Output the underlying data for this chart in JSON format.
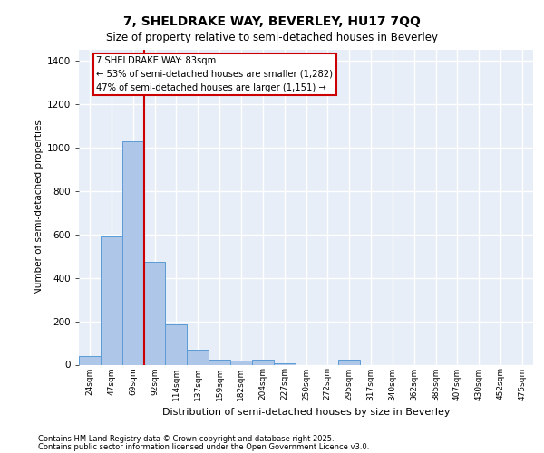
{
  "title1": "7, SHELDRAKE WAY, BEVERLEY, HU17 7QQ",
  "title2": "Size of property relative to semi-detached houses in Beverley",
  "xlabel": "Distribution of semi-detached houses by size in Beverley",
  "ylabel": "Number of semi-detached properties",
  "categories": [
    "24sqm",
    "47sqm",
    "69sqm",
    "92sqm",
    "114sqm",
    "137sqm",
    "159sqm",
    "182sqm",
    "204sqm",
    "227sqm",
    "250sqm",
    "272sqm",
    "295sqm",
    "317sqm",
    "340sqm",
    "362sqm",
    "385sqm",
    "407sqm",
    "430sqm",
    "452sqm",
    "475sqm"
  ],
  "values": [
    40,
    590,
    1030,
    475,
    185,
    70,
    25,
    18,
    25,
    8,
    0,
    0,
    22,
    0,
    0,
    0,
    0,
    0,
    0,
    0,
    0
  ],
  "bar_color": "#aec6e8",
  "bar_edge_color": "#5b9bd5",
  "background_color": "#e8eef7",
  "grid_color": "#ffffff",
  "vline_color": "#cc0000",
  "annotation_text_line1": "7 SHELDRAKE WAY: 83sqm",
  "annotation_text_line2": "← 53% of semi-detached houses are smaller (1,282)",
  "annotation_text_line3": "47% of semi-detached houses are larger (1,151) →",
  "annotation_box_color": "#cc0000",
  "footer_line1": "Contains HM Land Registry data © Crown copyright and database right 2025.",
  "footer_line2": "Contains public sector information licensed under the Open Government Licence v3.0.",
  "ylim": [
    0,
    1450
  ],
  "yticks": [
    0,
    200,
    400,
    600,
    800,
    1000,
    1200,
    1400
  ]
}
